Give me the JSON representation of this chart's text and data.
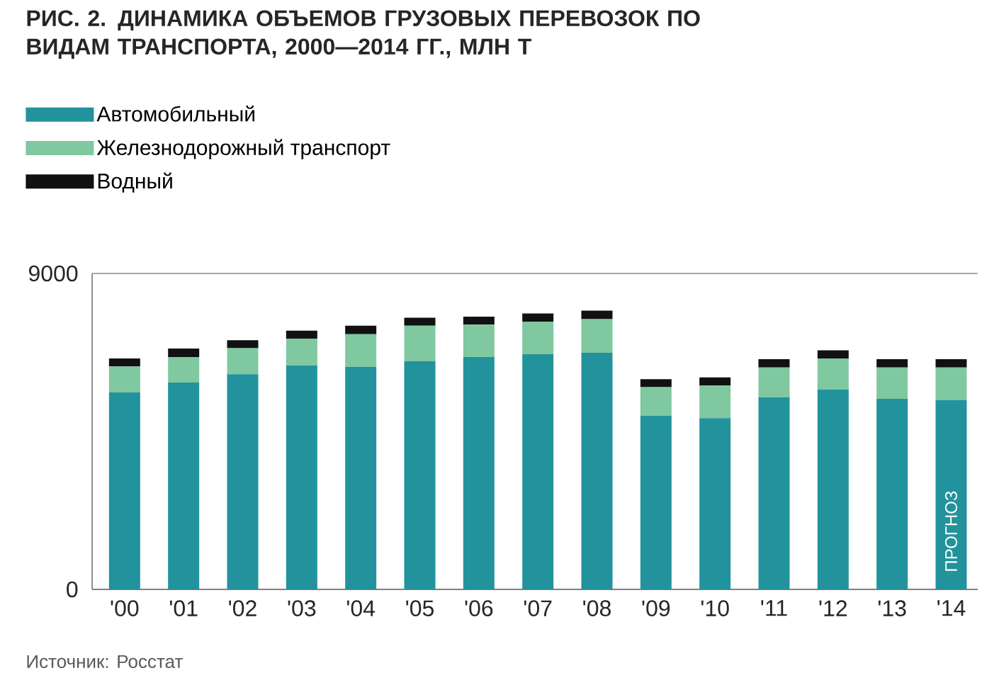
{
  "chart_data": {
    "type": "bar",
    "stacked": true,
    "title": "РИС. 2. ДИНАМИКА ОБЪЕМОВ ГРУЗОВЫХ ПЕРЕВОЗОК ПО ВИДАМ ТРАНСПОРТА, 2000—2014 ГГ., МЛН Т",
    "categories": [
      "'00",
      "'01",
      "'02",
      "'03",
      "'04",
      "'05",
      "'06",
      "'07",
      "'08",
      "'09",
      "'10",
      "'11",
      "'12",
      "'13",
      "'14"
    ],
    "series": [
      {
        "name": "Автомобильный",
        "color": "#22939c",
        "values": [
          5610,
          5890,
          6130,
          6380,
          6340,
          6500,
          6620,
          6700,
          6740,
          4950,
          4880,
          5470,
          5690,
          5430,
          5400
        ]
      },
      {
        "name": "Железнодорожный транспорт",
        "color": "#7fc8a0",
        "values": [
          740,
          730,
          740,
          760,
          930,
          1010,
          920,
          930,
          960,
          810,
          930,
          850,
          890,
          890,
          920
        ]
      },
      {
        "name": "Водный",
        "color": "#111111",
        "values": [
          230,
          240,
          230,
          230,
          240,
          230,
          230,
          230,
          240,
          230,
          230,
          240,
          230,
          240,
          240
        ]
      }
    ],
    "ylim": [
      0,
      9000
    ],
    "yticks": [
      0,
      9000
    ],
    "grid": "y",
    "legend": "top left",
    "annotations": [
      "ПРОГНОЗ",
      "Источник: Росстат"
    ]
  }
}
